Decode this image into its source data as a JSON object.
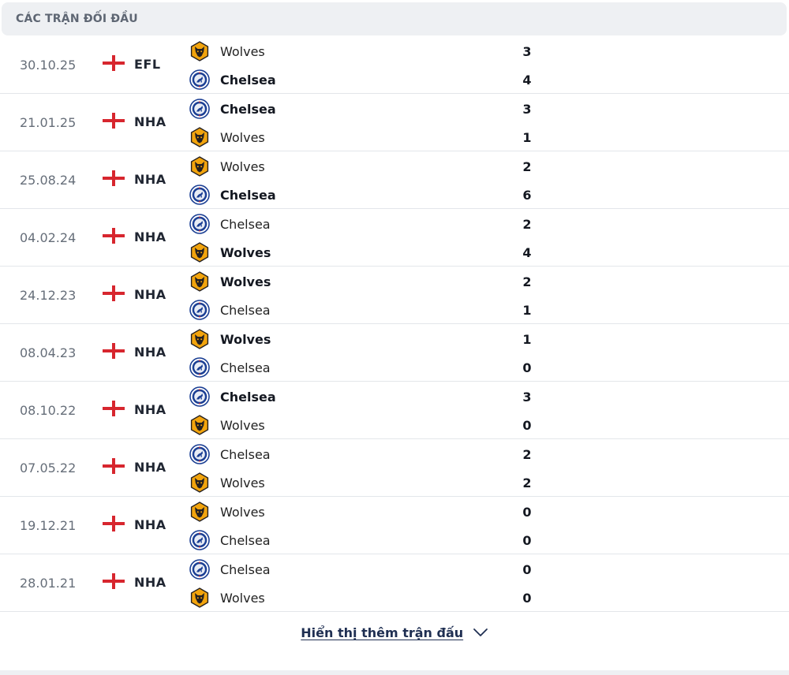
{
  "header": {
    "title": "CÁC TRẬN ĐỐI ĐẦU"
  },
  "colors": {
    "wolves_gold": "#f2a40d",
    "wolves_dark": "#231f20",
    "chelsea_blue": "#1b3f94",
    "flag_red": "#d7262e"
  },
  "icons": {
    "flag": "england-flag-icon",
    "wolves": "wolves-logo-icon",
    "chelsea": "chelsea-logo-icon",
    "more": "chevron-down-icon"
  },
  "matches": [
    {
      "date": "30.10.25",
      "competition": "EFL",
      "teams": [
        {
          "name": "Wolves",
          "club": "wolves",
          "score": "3",
          "winner": false
        },
        {
          "name": "Chelsea",
          "club": "chelsea",
          "score": "4",
          "winner": true
        }
      ]
    },
    {
      "date": "21.01.25",
      "competition": "NHA",
      "teams": [
        {
          "name": "Chelsea",
          "club": "chelsea",
          "score": "3",
          "winner": true
        },
        {
          "name": "Wolves",
          "club": "wolves",
          "score": "1",
          "winner": false
        }
      ]
    },
    {
      "date": "25.08.24",
      "competition": "NHA",
      "teams": [
        {
          "name": "Wolves",
          "club": "wolves",
          "score": "2",
          "winner": false
        },
        {
          "name": "Chelsea",
          "club": "chelsea",
          "score": "6",
          "winner": true
        }
      ]
    },
    {
      "date": "04.02.24",
      "competition": "NHA",
      "teams": [
        {
          "name": "Chelsea",
          "club": "chelsea",
          "score": "2",
          "winner": false
        },
        {
          "name": "Wolves",
          "club": "wolves",
          "score": "4",
          "winner": true
        }
      ]
    },
    {
      "date": "24.12.23",
      "competition": "NHA",
      "teams": [
        {
          "name": "Wolves",
          "club": "wolves",
          "score": "2",
          "winner": true
        },
        {
          "name": "Chelsea",
          "club": "chelsea",
          "score": "1",
          "winner": false
        }
      ]
    },
    {
      "date": "08.04.23",
      "competition": "NHA",
      "teams": [
        {
          "name": "Wolves",
          "club": "wolves",
          "score": "1",
          "winner": true
        },
        {
          "name": "Chelsea",
          "club": "chelsea",
          "score": "0",
          "winner": false
        }
      ]
    },
    {
      "date": "08.10.22",
      "competition": "NHA",
      "teams": [
        {
          "name": "Chelsea",
          "club": "chelsea",
          "score": "3",
          "winner": true
        },
        {
          "name": "Wolves",
          "club": "wolves",
          "score": "0",
          "winner": false
        }
      ]
    },
    {
      "date": "07.05.22",
      "competition": "NHA",
      "teams": [
        {
          "name": "Chelsea",
          "club": "chelsea",
          "score": "2",
          "winner": false
        },
        {
          "name": "Wolves",
          "club": "wolves",
          "score": "2",
          "winner": false
        }
      ]
    },
    {
      "date": "19.12.21",
      "competition": "NHA",
      "teams": [
        {
          "name": "Wolves",
          "club": "wolves",
          "score": "0",
          "winner": false
        },
        {
          "name": "Chelsea",
          "club": "chelsea",
          "score": "0",
          "winner": false
        }
      ]
    },
    {
      "date": "28.01.21",
      "competition": "NHA",
      "teams": [
        {
          "name": "Chelsea",
          "club": "chelsea",
          "score": "0",
          "winner": false
        },
        {
          "name": "Wolves",
          "club": "wolves",
          "score": "0",
          "winner": false
        }
      ]
    }
  ],
  "show_more": {
    "label": "Hiển thị thêm trận đấu"
  }
}
